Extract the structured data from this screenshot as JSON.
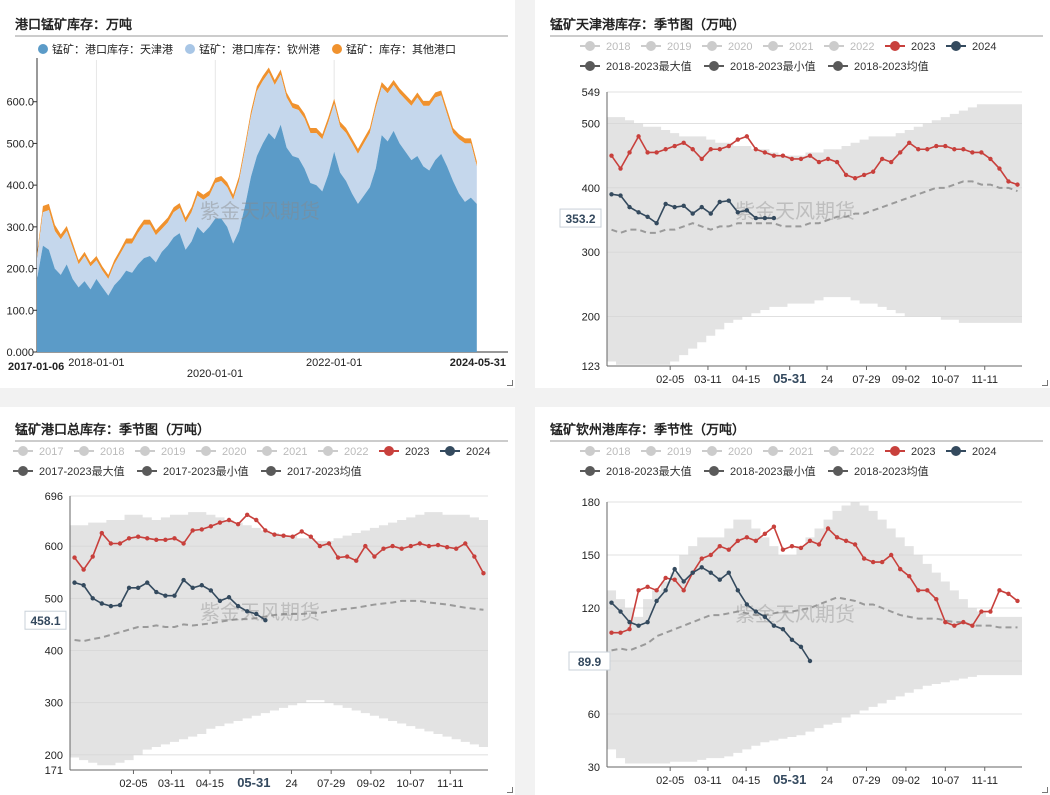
{
  "watermark": "紫金天风期货",
  "colors": {
    "s2023": "#c8403c",
    "s2024": "#344a5e",
    "range": "#e3e3e3",
    "avg": "#9a9a9a",
    "legend_grey": "#cccccc",
    "legend_dark": "#5a5a5a",
    "tj": "#5b9bc8",
    "qz": "#c5d7ec",
    "other": "#f0922e"
  },
  "chart_data": [
    {
      "id": "stack",
      "type": "area",
      "title": "港口锰矿库存：万吨",
      "legend": [
        "锰矿：港口库存：天津港",
        "锰矿：港口库存：钦州港",
        "锰矿：库存：其他港口"
      ],
      "ylim": [
        0,
        700
      ],
      "yticks": [
        "0.000",
        "100.0",
        "200.0",
        "300.0",
        "400.0",
        "500.0",
        "600.0"
      ],
      "xticks": [
        "2017-01-06",
        "2018-01-01",
        "2020-01-01",
        "2022-01-01",
        "2024-05-31"
      ],
      "x": [
        2017.0,
        2017.1,
        2017.2,
        2017.3,
        2017.4,
        2017.5,
        2017.6,
        2017.7,
        2017.8,
        2017.9,
        2018.0,
        2018.1,
        2018.2,
        2018.3,
        2018.4,
        2018.5,
        2018.6,
        2018.7,
        2018.8,
        2018.9,
        2019.0,
        2019.1,
        2019.2,
        2019.3,
        2019.4,
        2019.5,
        2019.6,
        2019.7,
        2019.8,
        2019.9,
        2020.0,
        2020.1,
        2020.2,
        2020.3,
        2020.4,
        2020.5,
        2020.6,
        2020.7,
        2020.8,
        2020.9,
        2021.0,
        2021.1,
        2021.2,
        2021.3,
        2021.4,
        2021.5,
        2021.6,
        2021.7,
        2021.8,
        2021.9,
        2022.0,
        2022.1,
        2022.2,
        2022.3,
        2022.4,
        2022.5,
        2022.6,
        2022.7,
        2022.8,
        2022.9,
        2023.0,
        2023.1,
        2023.2,
        2023.3,
        2023.4,
        2023.5,
        2023.6,
        2023.7,
        2023.8,
        2023.9,
        2024.0,
        2024.1,
        2024.2,
        2024.3,
        2024.4
      ],
      "series": [
        {
          "name": "锰矿：港口库存：天津港",
          "values": [
            175,
            255,
            245,
            200,
            185,
            210,
            175,
            155,
            170,
            150,
            175,
            155,
            135,
            160,
            175,
            195,
            190,
            210,
            225,
            230,
            215,
            240,
            255,
            275,
            285,
            245,
            265,
            300,
            285,
            300,
            320,
            320,
            300,
            260,
            290,
            350,
            420,
            470,
            500,
            525,
            510,
            545,
            490,
            470,
            465,
            440,
            405,
            400,
            385,
            425,
            480,
            430,
            410,
            380,
            355,
            375,
            395,
            440,
            520,
            505,
            530,
            500,
            480,
            460,
            470,
            445,
            435,
            460,
            475,
            445,
            410,
            380,
            360,
            370,
            355
          ]
        },
        {
          "name": "锰矿：港口库存：钦州港",
          "values": [
            50,
            80,
            95,
            90,
            85,
            80,
            75,
            55,
            60,
            55,
            45,
            40,
            40,
            50,
            60,
            65,
            70,
            75,
            80,
            75,
            65,
            55,
            55,
            60,
            60,
            65,
            70,
            75,
            80,
            75,
            85,
            90,
            95,
            105,
            120,
            135,
            145,
            155,
            150,
            145,
            130,
            120,
            120,
            115,
            115,
            120,
            120,
            125,
            125,
            125,
            115,
            110,
            115,
            120,
            120,
            125,
            130,
            145,
            115,
            115,
            110,
            120,
            125,
            130,
            140,
            145,
            155,
            150,
            140,
            125,
            115,
            130,
            140,
            130,
            90
          ]
        },
        {
          "name": "锰矿：库存：其他港口",
          "values": [
            10,
            15,
            15,
            15,
            12,
            12,
            12,
            10,
            10,
            10,
            10,
            10,
            10,
            10,
            10,
            12,
            12,
            12,
            12,
            12,
            12,
            12,
            12,
            12,
            12,
            12,
            12,
            12,
            12,
            12,
            12,
            12,
            12,
            12,
            12,
            12,
            12,
            12,
            12,
            12,
            12,
            12,
            12,
            12,
            12,
            12,
            12,
            12,
            12,
            12,
            12,
            12,
            12,
            12,
            12,
            12,
            12,
            12,
            12,
            12,
            12,
            12,
            12,
            12,
            12,
            12,
            12,
            12,
            12,
            12,
            12,
            12,
            12,
            12,
            12
          ]
        }
      ]
    },
    {
      "id": "tj",
      "type": "line",
      "title": "锰矿天津港库存：季节图（万吨）",
      "legend_years": [
        "2018",
        "2019",
        "2020",
        "2021",
        "2022",
        "2023",
        "2024"
      ],
      "legend_stats": [
        "2018-2023最大值",
        "2018-2023最小值",
        "2018-2023均值"
      ],
      "ylim": [
        123,
        549
      ],
      "yticks": [
        123,
        200,
        300,
        400,
        500,
        549
      ],
      "xticks": [
        "02-05",
        "03-11",
        "04-15",
        "05-31",
        "24",
        "07-29",
        "09-02",
        "10-07",
        "11-11"
      ],
      "current_label": "353.2",
      "max": [
        510,
        510,
        505,
        500,
        495,
        495,
        490,
        485,
        480,
        480,
        480,
        475,
        470,
        470,
        465,
        465,
        460,
        460,
        455,
        450,
        450,
        450,
        455,
        455,
        460,
        460,
        465,
        470,
        475,
        480,
        480,
        480,
        485,
        490,
        495,
        500,
        505,
        510,
        515,
        520,
        525,
        530,
        530,
        530,
        530,
        530
      ],
      "min": [
        130,
        125,
        125,
        125,
        125,
        125,
        125,
        130,
        140,
        150,
        160,
        170,
        180,
        190,
        195,
        200,
        205,
        210,
        215,
        215,
        220,
        220,
        220,
        225,
        230,
        230,
        230,
        225,
        220,
        220,
        215,
        210,
        205,
        200,
        200,
        200,
        200,
        195,
        195,
        190,
        190,
        190,
        190,
        190,
        190,
        190
      ],
      "avg": [
        335,
        330,
        335,
        335,
        330,
        330,
        335,
        335,
        340,
        345,
        340,
        335,
        340,
        340,
        345,
        345,
        345,
        345,
        345,
        340,
        340,
        340,
        345,
        345,
        350,
        355,
        355,
        360,
        360,
        365,
        370,
        375,
        380,
        385,
        390,
        395,
        400,
        400,
        405,
        410,
        410,
        405,
        405,
        400,
        400,
        395
      ],
      "s2023": [
        450,
        430,
        455,
        480,
        455,
        455,
        460,
        465,
        470,
        460,
        445,
        460,
        460,
        465,
        475,
        480,
        460,
        455,
        450,
        450,
        445,
        445,
        450,
        440,
        445,
        440,
        420,
        415,
        420,
        425,
        445,
        440,
        455,
        470,
        460,
        460,
        465,
        465,
        460,
        460,
        455,
        455,
        445,
        430,
        410,
        405
      ],
      "s2024": [
        390,
        388,
        370,
        362,
        355,
        345,
        375,
        370,
        372,
        360,
        370,
        360,
        378,
        380,
        362,
        365,
        353,
        353,
        353
      ]
    },
    {
      "id": "total",
      "type": "line",
      "title": "锰矿港口总库存：季节图（万吨）",
      "legend_years": [
        "2017",
        "2018",
        "2019",
        "2020",
        "2021",
        "2022",
        "2023",
        "2024"
      ],
      "legend_stats": [
        "2017-2023最大值",
        "2017-2023最小值",
        "2017-2023均值"
      ],
      "ylim": [
        171,
        696
      ],
      "yticks": [
        171,
        200,
        300,
        400,
        500,
        600,
        696
      ],
      "xticks": [
        "02-05",
        "03-11",
        "04-15",
        "05-31",
        "24",
        "07-29",
        "09-02",
        "10-07",
        "11-11"
      ],
      "current_label": "458.1",
      "max": [
        640,
        640,
        645,
        645,
        650,
        650,
        660,
        660,
        655,
        650,
        655,
        660,
        660,
        665,
        665,
        660,
        655,
        650,
        645,
        640,
        635,
        630,
        625,
        620,
        620,
        615,
        615,
        610,
        610,
        615,
        620,
        625,
        630,
        635,
        640,
        645,
        650,
        655,
        660,
        665,
        665,
        660,
        660,
        660,
        655,
        650
      ],
      "min": [
        195,
        190,
        185,
        180,
        180,
        185,
        190,
        200,
        210,
        215,
        220,
        225,
        230,
        235,
        240,
        250,
        255,
        260,
        265,
        270,
        275,
        280,
        285,
        290,
        295,
        300,
        305,
        305,
        300,
        295,
        290,
        285,
        280,
        275,
        270,
        265,
        260,
        255,
        250,
        245,
        240,
        235,
        230,
        225,
        220,
        215
      ],
      "avg": [
        420,
        418,
        422,
        425,
        430,
        435,
        440,
        445,
        445,
        448,
        445,
        445,
        450,
        448,
        450,
        452,
        455,
        458,
        460,
        460,
        462,
        465,
        468,
        470,
        470,
        470,
        472,
        472,
        475,
        478,
        480,
        482,
        485,
        488,
        490,
        492,
        495,
        495,
        495,
        492,
        490,
        488,
        485,
        482,
        480,
        478
      ],
      "s2023": [
        578,
        555,
        580,
        625,
        605,
        605,
        615,
        618,
        615,
        612,
        612,
        615,
        605,
        630,
        632,
        638,
        645,
        650,
        642,
        660,
        650,
        630,
        622,
        620,
        618,
        628,
        618,
        600,
        605,
        578,
        580,
        572,
        600,
        580,
        595,
        600,
        595,
        600,
        605,
        600,
        602,
        598,
        595,
        605,
        580,
        548
      ],
      "s2024": [
        530,
        525,
        500,
        490,
        485,
        487,
        520,
        520,
        530,
        512,
        505,
        505,
        535,
        520,
        525,
        515,
        495,
        502,
        485,
        475,
        470,
        458
      ]
    },
    {
      "id": "qz",
      "type": "line",
      "title": "锰矿钦州港库存：季节性（万吨）",
      "legend_years": [
        "2018",
        "2019",
        "2020",
        "2021",
        "2022",
        "2023",
        "2024"
      ],
      "legend_stats": [
        "2018-2023最大值",
        "2018-2023最小值",
        "2018-2023均值"
      ],
      "ylim": [
        30,
        180
      ],
      "yticks": [
        30,
        60,
        90,
        120,
        150,
        180
      ],
      "xticks": [
        "02-05",
        "03-11",
        "04-15",
        "05-31",
        "24",
        "07-29",
        "09-02",
        "10-07",
        "11-11"
      ],
      "current_label": "89.9",
      "max": [
        130,
        125,
        120,
        115,
        125,
        130,
        135,
        140,
        150,
        155,
        160,
        160,
        160,
        165,
        170,
        170,
        165,
        160,
        155,
        150,
        150,
        155,
        160,
        165,
        170,
        175,
        178,
        180,
        178,
        175,
        170,
        165,
        160,
        155,
        150,
        145,
        140,
        135,
        130,
        125,
        120,
        118,
        115,
        115,
        115,
        115
      ],
      "min": [
        40,
        35,
        32,
        32,
        32,
        32,
        32,
        33,
        33,
        33,
        34,
        35,
        35,
        36,
        38,
        40,
        42,
        44,
        45,
        46,
        47,
        48,
        50,
        52,
        54,
        55,
        58,
        60,
        62,
        64,
        66,
        68,
        70,
        72,
        74,
        76,
        77,
        78,
        79,
        80,
        81,
        82,
        82,
        82,
        82,
        82
      ],
      "avg": [
        96,
        97,
        96,
        98,
        100,
        104,
        106,
        108,
        110,
        112,
        114,
        116,
        116,
        117,
        118,
        117,
        116,
        116,
        117,
        118,
        118,
        119,
        120,
        122,
        124,
        126,
        125,
        124,
        122,
        122,
        120,
        118,
        116,
        115,
        114,
        114,
        114,
        113,
        112,
        112,
        110,
        110,
        110,
        109,
        109,
        109
      ],
      "s2023": [
        106,
        106,
        108,
        130,
        132,
        130,
        137,
        136,
        130,
        140,
        148,
        150,
        155,
        153,
        158,
        160,
        158,
        162,
        166,
        153,
        155,
        154,
        158,
        156,
        165,
        160,
        158,
        156,
        148,
        146,
        146,
        150,
        142,
        138,
        130,
        130,
        125,
        112,
        110,
        112,
        110,
        118,
        118,
        130,
        128,
        124
      ],
      "s2024": [
        123,
        118,
        112,
        110,
        112,
        124,
        130,
        142,
        135,
        140,
        143,
        140,
        136,
        140,
        130,
        122,
        118,
        115,
        110,
        108,
        102,
        98,
        90
      ]
    }
  ]
}
